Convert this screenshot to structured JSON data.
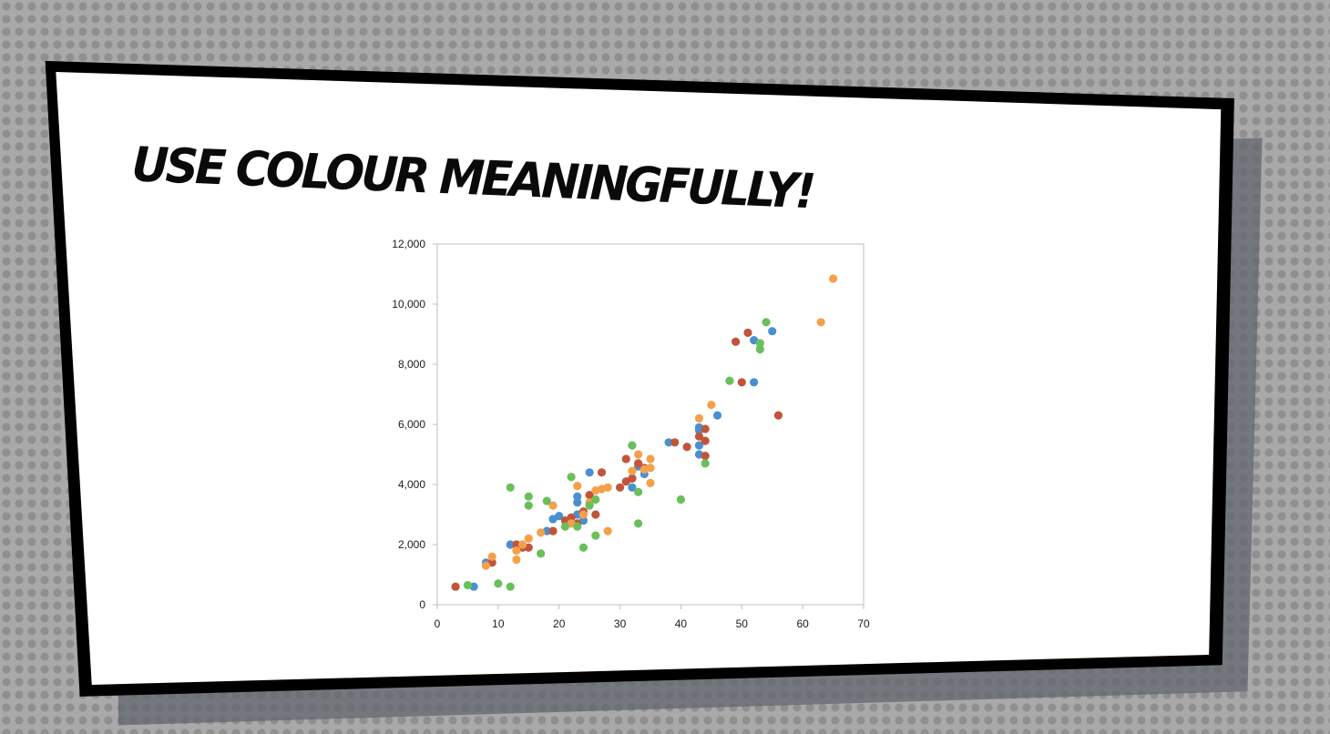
{
  "slide": {
    "title": "Use colour meaningfully!"
  },
  "colors": {
    "series": [
      "#4a90d0",
      "#c0553a",
      "#f5a04a",
      "#6abf5a"
    ],
    "axis": "#bfbfbf"
  },
  "chart_data": {
    "type": "scatter",
    "title": "",
    "xlabel": "",
    "ylabel": "",
    "xlim": [
      0,
      70
    ],
    "ylim": [
      0,
      12000
    ],
    "x_ticks": [
      "0",
      "10",
      "20",
      "30",
      "40",
      "50",
      "60",
      "70"
    ],
    "y_ticks": [
      "0",
      "2,000",
      "4,000",
      "6,000",
      "8,000",
      "10,000",
      "12,000"
    ],
    "grid": false,
    "legend": "none",
    "series": [
      {
        "color": "#4a90d0",
        "points": [
          [
            6,
            600
          ],
          [
            8,
            1400
          ],
          [
            12,
            2000
          ],
          [
            13,
            2000
          ],
          [
            18,
            2450
          ],
          [
            19,
            2850
          ],
          [
            20,
            2950
          ],
          [
            23,
            3400
          ],
          [
            23,
            3600
          ],
          [
            23,
            3000
          ],
          [
            24,
            2800
          ],
          [
            25,
            4400
          ],
          [
            32,
            3900
          ],
          [
            32,
            4200
          ],
          [
            33,
            4600
          ],
          [
            34,
            4350
          ],
          [
            38,
            5400
          ],
          [
            43,
            5800
          ],
          [
            43,
            5300
          ],
          [
            43,
            5000
          ],
          [
            43,
            5900
          ],
          [
            46,
            6300
          ],
          [
            52,
            7400
          ],
          [
            52,
            8800
          ],
          [
            55,
            9100
          ]
        ]
      },
      {
        "color": "#c0553a",
        "points": [
          [
            3,
            600
          ],
          [
            9,
            1400
          ],
          [
            13,
            2000
          ],
          [
            14,
            1900
          ],
          [
            15,
            1900
          ],
          [
            19,
            2450
          ],
          [
            21,
            2800
          ],
          [
            22,
            2900
          ],
          [
            23,
            2700
          ],
          [
            24,
            3100
          ],
          [
            25,
            3650
          ],
          [
            26,
            3000
          ],
          [
            27,
            4400
          ],
          [
            30,
            3900
          ],
          [
            31,
            4100
          ],
          [
            31,
            4850
          ],
          [
            32,
            4200
          ],
          [
            33,
            4700
          ],
          [
            34,
            4550
          ],
          [
            39,
            5400
          ],
          [
            41,
            5250
          ],
          [
            43,
            5600
          ],
          [
            44,
            5450
          ],
          [
            44,
            5850
          ],
          [
            44,
            4950
          ],
          [
            49,
            8750
          ],
          [
            50,
            7400
          ],
          [
            51,
            9050
          ],
          [
            56,
            6300
          ]
        ]
      },
      {
        "color": "#f5a04a",
        "points": [
          [
            8,
            1300
          ],
          [
            9,
            1600
          ],
          [
            13,
            1500
          ],
          [
            13,
            1800
          ],
          [
            14,
            2000
          ],
          [
            15,
            2200
          ],
          [
            17,
            2400
          ],
          [
            19,
            3300
          ],
          [
            22,
            2700
          ],
          [
            23,
            3950
          ],
          [
            24,
            3000
          ],
          [
            25,
            3400
          ],
          [
            26,
            3800
          ],
          [
            27,
            3850
          ],
          [
            28,
            3900
          ],
          [
            28,
            2450
          ],
          [
            32,
            4450
          ],
          [
            33,
            5000
          ],
          [
            34,
            4500
          ],
          [
            35,
            4850
          ],
          [
            35,
            4550
          ],
          [
            35,
            4050
          ],
          [
            43,
            6200
          ],
          [
            45,
            6650
          ],
          [
            63,
            9400
          ],
          [
            65,
            10850
          ]
        ]
      },
      {
        "color": "#6abf5a",
        "points": [
          [
            5,
            650
          ],
          [
            10,
            700
          ],
          [
            12,
            600
          ],
          [
            12,
            3900
          ],
          [
            15,
            3600
          ],
          [
            15,
            3300
          ],
          [
            17,
            1700
          ],
          [
            18,
            3450
          ],
          [
            21,
            2600
          ],
          [
            22,
            4250
          ],
          [
            23,
            2600
          ],
          [
            24,
            1900
          ],
          [
            25,
            3300
          ],
          [
            26,
            3500
          ],
          [
            26,
            2300
          ],
          [
            32,
            5300
          ],
          [
            33,
            3750
          ],
          [
            33,
            2700
          ],
          [
            40,
            3500
          ],
          [
            44,
            4700
          ],
          [
            48,
            7450
          ],
          [
            53,
            8500
          ],
          [
            53,
            8700
          ],
          [
            54,
            9400
          ]
        ]
      }
    ]
  }
}
